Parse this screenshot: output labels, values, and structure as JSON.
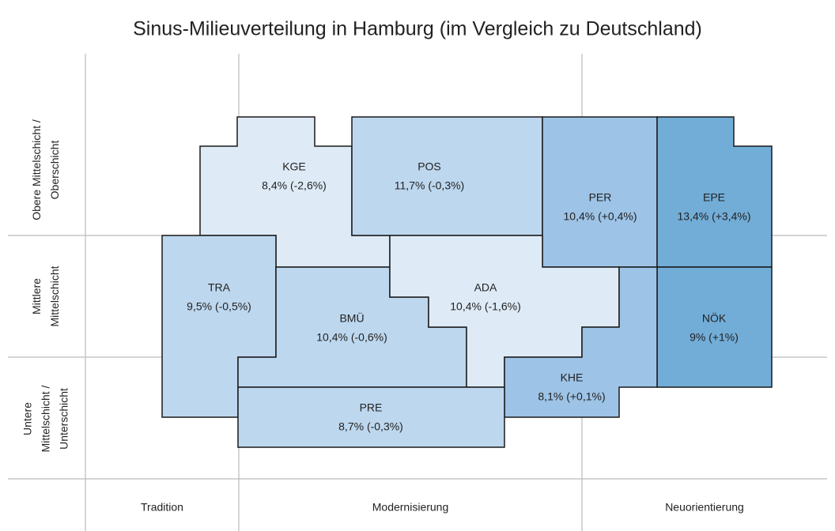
{
  "title": "Sinus-Milieuverteilung in Hamburg (im Vergleich zu Deutschland)",
  "rows": [
    [
      "Obere Mittelschicht /",
      "Oberschicht"
    ],
    [
      "Mittlere",
      "Mittelschicht"
    ],
    [
      "Untere",
      "Mittelschicht /",
      "Unterschicht"
    ]
  ],
  "columns": [
    "Tradition",
    "Modernisierung",
    "Neuorientierung"
  ],
  "milieus": [
    {
      "code": "KGE",
      "label": "8,4% (-2,6%)"
    },
    {
      "code": "POS",
      "label": "11,7% (-0,3%)"
    },
    {
      "code": "PER",
      "label": "10,4% (+0,4%)"
    },
    {
      "code": "EPE",
      "label": "13,4% (+3,4%)"
    },
    {
      "code": "TRA",
      "label": "9,5% (-0,5%)"
    },
    {
      "code": "BMÜ",
      "label": "10,4% (-0,6%)"
    },
    {
      "code": "ADA",
      "label": "10,4% (-1,6%)"
    },
    {
      "code": "NÖK",
      "label": "9% (+1%)"
    },
    {
      "code": "KHE",
      "label": "8,1% (+0,1%)"
    },
    {
      "code": "PRE",
      "label": "8,7% (-0,3%)"
    }
  ]
}
